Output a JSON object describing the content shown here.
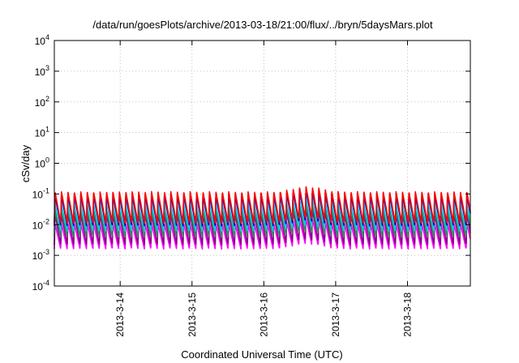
{
  "chart_data": {
    "type": "line",
    "title": "/data/run/goesPlots/archive/2013-03-18/21:00/flux/../bryn/5daysMars.plot",
    "xlabel": "Coordinated Universal Time (UTC)",
    "ylabel": "cSv/day",
    "yscale": "log",
    "ylim": [
      0.0001,
      10000
    ],
    "xlim": [
      "2013-03-13T02:00",
      "2013-03-18T21:00"
    ],
    "grid": true,
    "legend": "none",
    "y_ticks": [
      {
        "base": "10",
        "exp": "-4"
      },
      {
        "base": "10",
        "exp": "-3"
      },
      {
        "base": "10",
        "exp": "-2"
      },
      {
        "base": "10",
        "exp": "-1"
      },
      {
        "base": "10",
        "exp": "0"
      },
      {
        "base": "10",
        "exp": "1"
      },
      {
        "base": "10",
        "exp": "2"
      },
      {
        "base": "10",
        "exp": "3"
      },
      {
        "base": "10",
        "exp": "4"
      }
    ],
    "x_ticks": [
      {
        "label": "2013-3-14",
        "t": "2013-03-14T00:00"
      },
      {
        "label": "2013-3-15",
        "t": "2013-03-15T00:00"
      },
      {
        "label": "2013-3-16",
        "t": "2013-03-16T00:00"
      },
      {
        "label": "2013-3-17",
        "t": "2013-03-17T00:00"
      },
      {
        "label": "2013-3-18",
        "t": "2013-03-18T00:00"
      }
    ],
    "pattern": {
      "period_hours": 2.15,
      "peak_fraction_of_period": 0.1,
      "enhanced_window": [
        "2013-03-16T05:00",
        "2013-03-17T00:00"
      ],
      "enhancement_factor": 1.5
    },
    "series": [
      {
        "color": "#ff0000",
        "peak": 0.12,
        "trough": 0.011
      },
      {
        "color": "#0000cc",
        "peak": 0.1,
        "trough": 0.009
      },
      {
        "color": "#1e90ff",
        "peak": 0.07,
        "trough": 0.012
      },
      {
        "color": "#00d0e0",
        "peak": 0.045,
        "trough": 0.006
      },
      {
        "color": "#2e8b57",
        "peak": 0.03,
        "trough": 0.004
      },
      {
        "color": "#8b008b",
        "peak": 0.022,
        "trough": 0.0022
      },
      {
        "color": "#ff00ff",
        "peak": 0.011,
        "trough": 0.0016
      }
    ]
  }
}
